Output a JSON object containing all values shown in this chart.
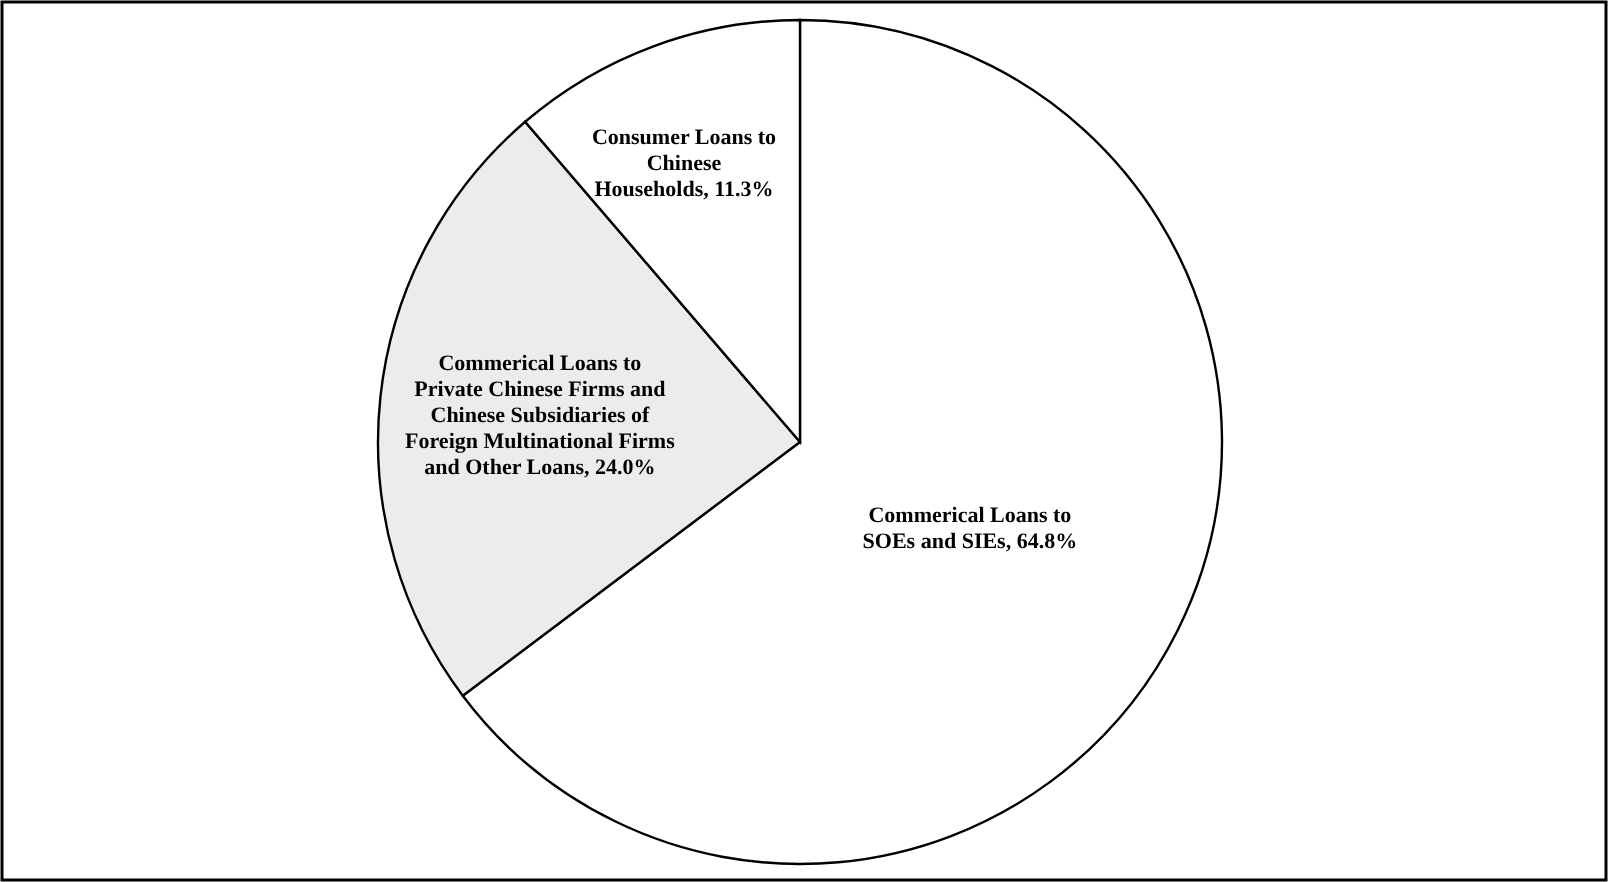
{
  "chart_data": {
    "type": "pie",
    "categories": [
      "Commerical Loans to SOEs and SIEs",
      "Commerical Loans to Private Chinese Firms and Chinese Subsidiaries of Foreign Multinational Firms and Other Loans",
      "Consumer Loans to Chinese Households"
    ],
    "values": [
      64.8,
      24.0,
      11.3
    ],
    "value_labels": [
      "64.8%",
      "24.0%",
      "11.3%"
    ],
    "colors": [
      "#ffffff",
      "#ececec",
      "#ffffff"
    ]
  }
}
